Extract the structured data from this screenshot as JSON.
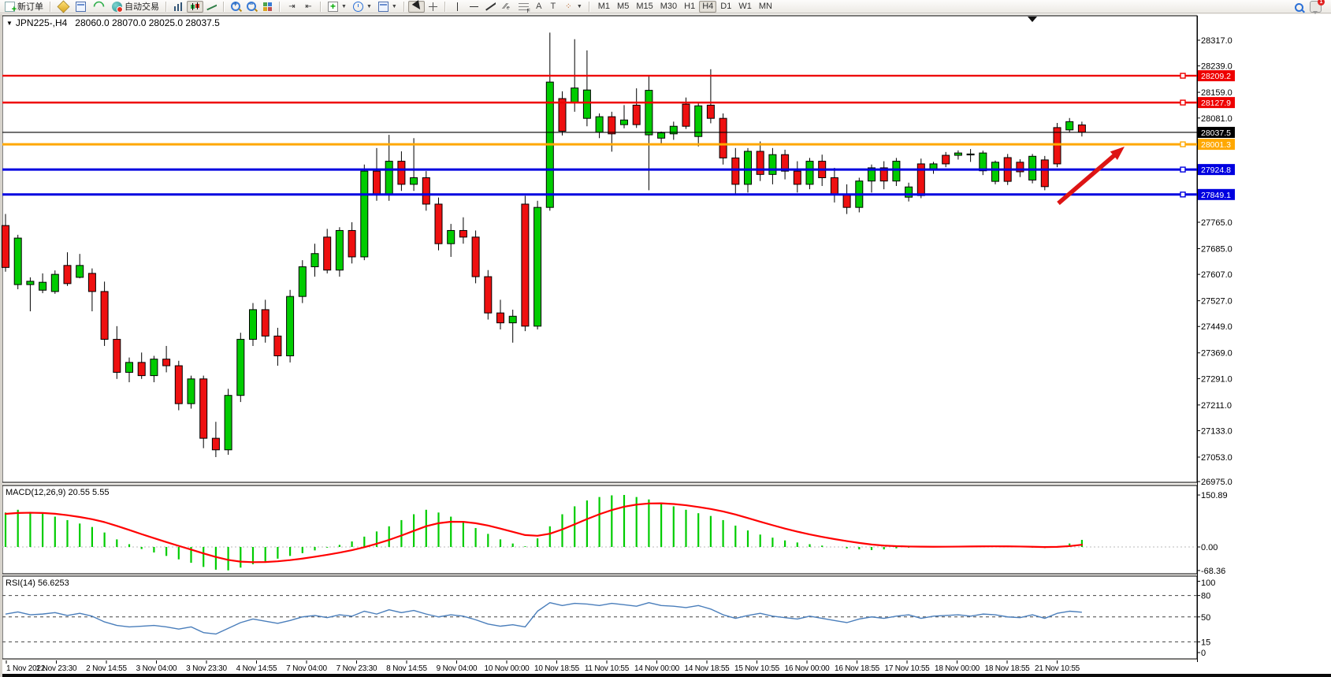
{
  "toolbar": {
    "new_order_label": "新订单",
    "auto_trading_label": "自动交易",
    "timeframes": [
      "M1",
      "M5",
      "M15",
      "M30",
      "H1",
      "H4",
      "D1",
      "W1",
      "MN"
    ],
    "active_timeframe": "H4"
  },
  "chart": {
    "title": {
      "symbol_period": "JPN225-,H4",
      "ohlc": "28060.0 28070.0 28025.0 28037.5"
    },
    "macd_label": "MACD(12,26,9) 20.55 5.55",
    "rsi_label": "RSI(14) 56.6253"
  },
  "chart_data": {
    "type": "candlestick",
    "symbol": "JPN225-",
    "period": "H4",
    "last_bar": {
      "open": 28060.0,
      "high": 28070.0,
      "low": 28025.0,
      "close": 28037.5
    },
    "colors": {
      "candle_up": "#00CC00",
      "candle_down": "#EE1010",
      "line_red": "#EE0000",
      "line_orange": "#FFA800",
      "line_blue": "#0000E0",
      "bid_line": "#000000",
      "macd_histogram": "#00CC00",
      "macd_signal": "#FF0000",
      "rsi_line": "#4A7EBB",
      "arrow": "#DD1414"
    },
    "price_axis_ticks": [
      28317.0,
      28239.0,
      28159.0,
      28081.0,
      27765.0,
      27685.0,
      27607.0,
      27527.0,
      27449.0,
      27369.0,
      27291.0,
      27211.0,
      27133.0,
      27053.0,
      26975.0
    ],
    "horizontal_lines": [
      {
        "price": 28209.2,
        "label": "28209.2",
        "color": "#EE0000",
        "width": 2.4,
        "handle": true
      },
      {
        "price": 28127.9,
        "label": "28127.9",
        "color": "#EE0000",
        "width": 2.4,
        "handle": true
      },
      {
        "price": 28037.5,
        "label": "28037.5",
        "color": "#000000",
        "width": 1.2,
        "handle": false
      },
      {
        "price": 28001.3,
        "label": "28001.3",
        "color": "#FFA800",
        "width": 3,
        "handle": true
      },
      {
        "price": 27924.8,
        "label": "27924.8",
        "color": "#0000E0",
        "width": 3,
        "handle": true
      },
      {
        "price": 27849.1,
        "label": "27849.1",
        "color": "#0000E0",
        "width": 3,
        "handle": true
      }
    ],
    "candles": [
      [
        27755,
        27790,
        27615,
        27628
      ],
      [
        27576,
        27727,
        27562,
        27717
      ],
      [
        27576,
        27598,
        27495,
        27586
      ],
      [
        27559,
        27610,
        27550,
        27583
      ],
      [
        27555,
        27619,
        27548,
        27607
      ],
      [
        27634,
        27674,
        27572,
        27579
      ],
      [
        27598,
        27669,
        27595,
        27634
      ],
      [
        27610,
        27625,
        27495,
        27555
      ],
      [
        27555,
        27585,
        27390,
        27410
      ],
      [
        27410,
        27450,
        27290,
        27310
      ],
      [
        27310,
        27355,
        27280,
        27340
      ],
      [
        27340,
        27370,
        27290,
        27300
      ],
      [
        27300,
        27360,
        27280,
        27350
      ],
      [
        27350,
        27390,
        27310,
        27330
      ],
      [
        27330,
        27345,
        27195,
        27215
      ],
      [
        27215,
        27300,
        27200,
        27290
      ],
      [
        27290,
        27300,
        27080,
        27110
      ],
      [
        27110,
        27160,
        27053,
        27075
      ],
      [
        27075,
        27260,
        27060,
        27240
      ],
      [
        27240,
        27430,
        27220,
        27410
      ],
      [
        27410,
        27520,
        27390,
        27500
      ],
      [
        27500,
        27530,
        27400,
        27420
      ],
      [
        27420,
        27445,
        27330,
        27360
      ],
      [
        27360,
        27560,
        27340,
        27540
      ],
      [
        27540,
        27650,
        27520,
        27630
      ],
      [
        27630,
        27700,
        27600,
        27670
      ],
      [
        27720,
        27745,
        27610,
        27620
      ],
      [
        27620,
        27750,
        27600,
        27740
      ],
      [
        27740,
        27765,
        27640,
        27660
      ],
      [
        27660,
        27940,
        27650,
        27920
      ],
      [
        27920,
        27990,
        27830,
        27850
      ],
      [
        27850,
        28030,
        27830,
        27950
      ],
      [
        27950,
        27980,
        27860,
        27880
      ],
      [
        27880,
        28020,
        27860,
        27900
      ],
      [
        27900,
        27920,
        27800,
        27820
      ],
      [
        27820,
        27840,
        27680,
        27700
      ],
      [
        27700,
        27760,
        27660,
        27740
      ],
      [
        27740,
        27780,
        27700,
        27720
      ],
      [
        27720,
        27740,
        27580,
        27600
      ],
      [
        27600,
        27620,
        27470,
        27490
      ],
      [
        27490,
        27530,
        27440,
        27460
      ],
      [
        27460,
        27500,
        27400,
        27480
      ],
      [
        27820,
        27845,
        27435,
        27450
      ],
      [
        27450,
        27830,
        27440,
        27810
      ],
      [
        27810,
        28340,
        27800,
        28190
      ],
      [
        28140,
        28162,
        28028,
        28041
      ],
      [
        28128,
        28320,
        28100,
        28172
      ],
      [
        28080,
        28286,
        28056,
        28166
      ],
      [
        28038,
        28095,
        28020,
        28085
      ],
      [
        28085,
        28100,
        27979,
        28033
      ],
      [
        28061,
        28120,
        28050,
        28075
      ],
      [
        28120,
        28171,
        28051,
        28061
      ],
      [
        28030,
        28210,
        27862,
        28165
      ],
      [
        28020,
        28040,
        28000,
        28036
      ],
      [
        28033,
        28070,
        28015,
        28056
      ],
      [
        28123,
        28143,
        28048,
        28056
      ],
      [
        28025,
        28130,
        27995,
        28118
      ],
      [
        28120,
        28229,
        28065,
        28080
      ],
      [
        28080,
        28095,
        27940,
        27960
      ],
      [
        27960,
        27990,
        27850,
        27880
      ],
      [
        27880,
        27990,
        27855,
        27980
      ],
      [
        27980,
        28010,
        27890,
        27910
      ],
      [
        27910,
        27990,
        27880,
        27970
      ],
      [
        27970,
        27985,
        27895,
        27920
      ],
      [
        27920,
        27950,
        27855,
        27880
      ],
      [
        27880,
        27960,
        27865,
        27950
      ],
      [
        27950,
        27970,
        27875,
        27900
      ],
      [
        27900,
        27930,
        27825,
        27850
      ],
      [
        27850,
        27880,
        27790,
        27810
      ],
      [
        27810,
        27900,
        27795,
        27890
      ],
      [
        27890,
        27940,
        27855,
        27930
      ],
      [
        27930,
        27950,
        27865,
        27890
      ],
      [
        27890,
        27960,
        27875,
        27950
      ],
      [
        27841,
        27885,
        27828,
        27872
      ],
      [
        27942,
        27958,
        27838,
        27846
      ],
      [
        27925,
        27948,
        27912,
        27942
      ],
      [
        27968,
        27978,
        27932,
        27942
      ],
      [
        27968,
        27983,
        27955,
        27975
      ],
      [
        27970,
        27987,
        27948,
        27972
      ],
      [
        27921,
        27982,
        27908,
        27975
      ],
      [
        27889,
        27952,
        27880,
        27947
      ],
      [
        27961,
        27972,
        27878,
        27889
      ],
      [
        27947,
        27956,
        27902,
        27918
      ],
      [
        27893,
        27972,
        27883,
        27965
      ],
      [
        27954,
        27966,
        27862,
        27873
      ],
      [
        28052,
        28066,
        27932,
        27942
      ],
      [
        28045,
        28081,
        28038,
        28070
      ],
      [
        28060,
        28070,
        28025,
        28038
      ]
    ],
    "macd": {
      "name": "MACD(12,26,9)",
      "main_value": 20.55,
      "signal_value": 5.55,
      "axis_values": [
        150.89,
        0.0,
        -68.36
      ],
      "histogram": [
        100,
        108,
        102,
        96,
        88,
        78,
        68,
        58,
        42,
        22,
        8,
        -6,
        -16,
        -26,
        -36,
        -46,
        -58,
        -66,
        -68,
        -60,
        -50,
        -42,
        -34,
        -26,
        -18,
        -10,
        -2,
        6,
        16,
        30,
        45,
        60,
        78,
        95,
        108,
        100,
        88,
        72,
        55,
        38,
        22,
        10,
        2,
        25,
        60,
        95,
        118,
        135,
        145,
        150,
        151,
        145,
        138,
        128,
        118,
        108,
        98,
        90,
        78,
        62,
        48,
        36,
        27,
        19,
        13,
        8,
        4,
        0,
        -4,
        -7,
        -9,
        -7,
        -4,
        -2,
        -1,
        0,
        1,
        2,
        3,
        3,
        2,
        1,
        0,
        -2,
        -3,
        2,
        10,
        20.55
      ]
    },
    "rsi": {
      "name": "RSI(14)",
      "value": 56.6253,
      "axis_values": [
        100,
        80,
        50,
        15,
        0
      ],
      "dashed_levels": [
        80,
        50,
        15
      ],
      "series": [
        54,
        57,
        53,
        54,
        56,
        52,
        55,
        51,
        43,
        38,
        36,
        37,
        38,
        36,
        33,
        36,
        28,
        26,
        34,
        42,
        47,
        44,
        41,
        45,
        50,
        52,
        49,
        53,
        51,
        58,
        54,
        60,
        56,
        59,
        54,
        50,
        53,
        51,
        46,
        40,
        37,
        39,
        36,
        58,
        70,
        66,
        69,
        68,
        66,
        69,
        67,
        65,
        70,
        66,
        65,
        63,
        66,
        61,
        53,
        48,
        52,
        55,
        51,
        49,
        47,
        51,
        48,
        45,
        42,
        47,
        50,
        48,
        51,
        53,
        48,
        51,
        52,
        53,
        51,
        54,
        53,
        50,
        49,
        53,
        48,
        55,
        58,
        56.6
      ]
    },
    "time_labels": [
      "1 Nov 2022",
      "1 Nov 23:30",
      "2 Nov 14:55",
      "3 Nov 04:00",
      "3 Nov 23:30",
      "4 Nov 14:55",
      "7 Nov 04:00",
      "7 Nov 23:30",
      "8 Nov 14:55",
      "9 Nov 04:00",
      "10 Nov 00:00",
      "10 Nov 18:55",
      "11 Nov 10:55",
      "14 Nov 00:00",
      "14 Nov 18:55",
      "15 Nov 10:55",
      "16 Nov 00:00",
      "16 Nov 18:55",
      "17 Nov 10:55",
      "18 Nov 00:00",
      "18 Nov 18:55",
      "21 Nov 10:55"
    ],
    "arrow_annotation": {
      "from_xy": [
        1343,
        258
      ],
      "to_xy": [
        1427,
        186
      ]
    }
  }
}
